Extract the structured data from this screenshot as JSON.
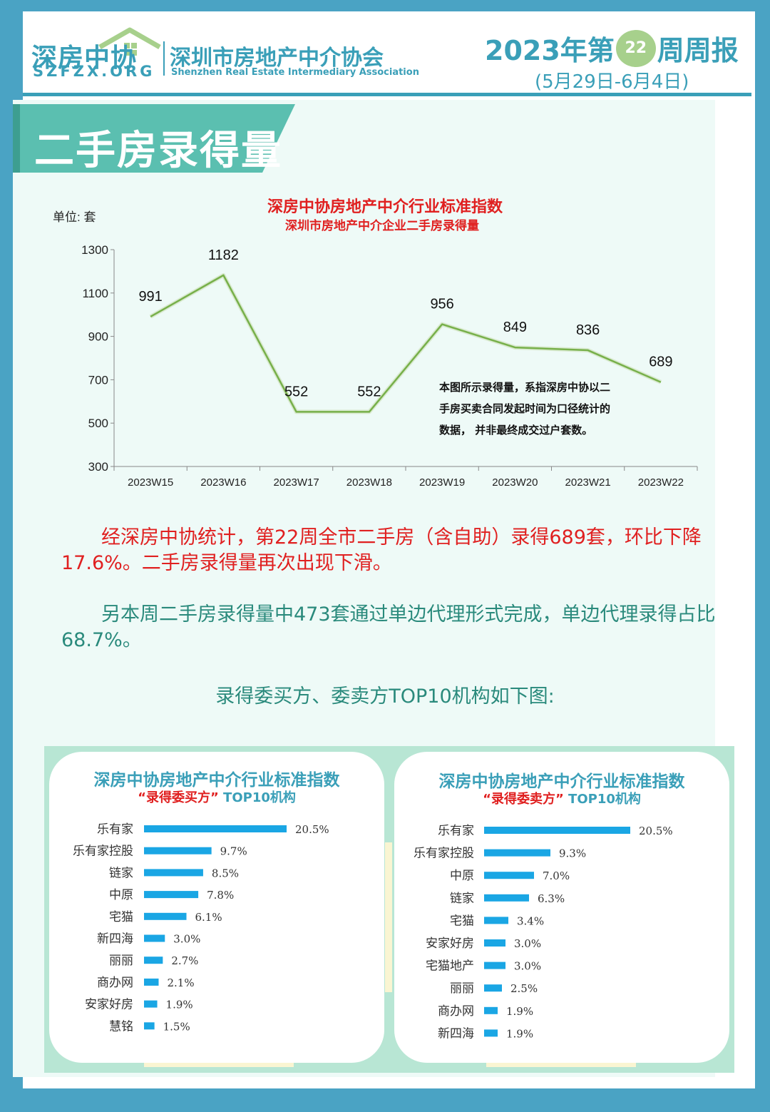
{
  "header": {
    "logo_cn": "深房中协",
    "logo_en": "SZFZX.ORG",
    "assoc_cn": "深圳市房地产中介协会",
    "assoc_en": "Shenzhen Real Estate Intermediary Association",
    "week_prefix": "2023年第",
    "week_number": "22",
    "week_suffix": "周周报",
    "date_range": "(5月29日-6月4日)"
  },
  "banner": {
    "title": "二手房录得量"
  },
  "line_chart_text": {
    "unit": "单位: 套",
    "note": "本图所示录得量，系指深房中协以二手房买卖合同发起时间为口径统计的数据， 并非最终成交过户套数。"
  },
  "paragraphs": {
    "p1": "经深房中协统计，第22周全市二手房（含自助）录得689套，环比下降17.6%。二手房录得量再次出现下滑。",
    "p2": "另本周二手房录得量中473套通过单边代理形式完成，单边代理录得占比68.7%。",
    "p3": "录得委买方、委卖方TOP10机构如下图:"
  },
  "colors": {
    "accent": "#3a9fb8",
    "line": "#77b04a",
    "bar": "#1aa6e4",
    "red": "#e02020",
    "frame": "#4aa3c4",
    "banner": "#5bbfb0"
  },
  "chart_data": [
    {
      "type": "line",
      "title": "深房中协房地产中介行业标准指数",
      "subtitle": "深圳市房地产中介企业二手房录得量",
      "ylabel": "单位: 套",
      "categories": [
        "2023W15",
        "2023W16",
        "2023W17",
        "2023W18",
        "2023W19",
        "2023W20",
        "2023W21",
        "2023W22"
      ],
      "series": [
        {
          "values": [
            991,
            1182,
            552,
            552,
            956,
            849,
            836,
            689
          ]
        }
      ],
      "ylim": [
        300,
        1300
      ],
      "yticks": [
        300,
        500,
        700,
        900,
        1100,
        1300
      ],
      "grid": false
    },
    {
      "type": "bar",
      "orientation": "horizontal",
      "title": "深房中协房地产中介行业标准指数",
      "subtitle_quote": "“录得委买方”",
      "subtitle_rest": " TOP10机构",
      "categories": [
        "乐有家",
        "乐有家控股",
        "链家",
        "中原",
        "宅猫",
        "新四海",
        "丽丽",
        "商办网",
        "安家好房",
        "慧铭"
      ],
      "values": [
        20.5,
        9.7,
        8.5,
        7.8,
        6.1,
        3.0,
        2.7,
        2.1,
        1.9,
        1.5
      ],
      "value_labels": [
        "20.5%",
        "9.7%",
        "8.5%",
        "7.8%",
        "6.1%",
        "3.0%",
        "2.7%",
        "2.1%",
        "1.9%",
        "1.5%"
      ]
    },
    {
      "type": "bar",
      "orientation": "horizontal",
      "title": "深房中协房地产中介行业标准指数",
      "subtitle_quote": "“录得委卖方”",
      "subtitle_rest": " TOP10机构",
      "categories": [
        "乐有家",
        "乐有家控股",
        "中原",
        "链家",
        "宅猫",
        "安家好房",
        "宅猫地产",
        "丽丽",
        "商办网",
        "新四海"
      ],
      "values": [
        20.5,
        9.3,
        7.0,
        6.3,
        3.4,
        3.0,
        3.0,
        2.5,
        1.9,
        1.9
      ],
      "value_labels": [
        "20.5%",
        "9.3%",
        "7.0%",
        "6.3%",
        "3.4%",
        "3.0%",
        "3.0%",
        "2.5%",
        "1.9%",
        "1.9%"
      ]
    }
  ]
}
